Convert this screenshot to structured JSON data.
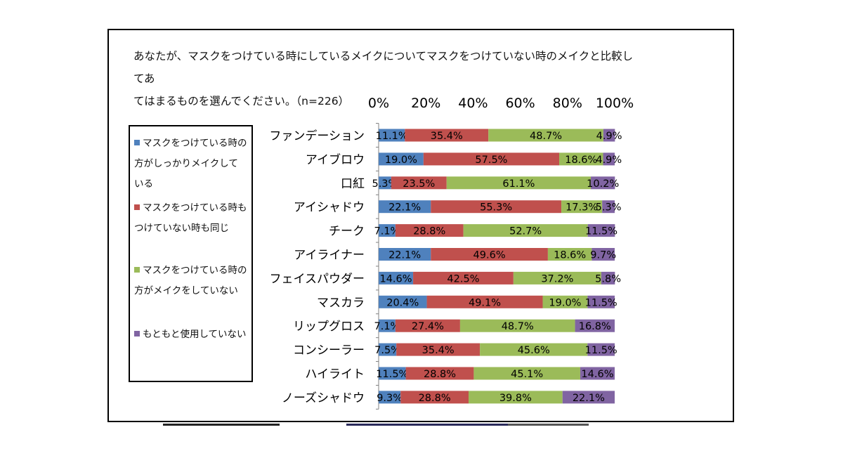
{
  "question": {
    "line1": "あなたが、マスクをつけている時にしているメイクについてマスクをつけていない時のメイクと比較してあ",
    "line2": "てはまるものを選んでください。（n=226）"
  },
  "legend": {
    "items": [
      {
        "line1": "マスクをつけている時の",
        "line2": "方がしっかりメイクして",
        "line3": "いる",
        "color": "#4f81bd"
      },
      {
        "line1": "マスクをつけている時も",
        "line2": "つけていない時も同じ",
        "line3": "",
        "color": "#c0504d"
      },
      {
        "line1": "マスクをつけている時の",
        "line2": "方がメイクをしていない",
        "line3": "",
        "color": "#9bbb59"
      },
      {
        "line1": "もともと使用していない",
        "line2": "",
        "line3": "",
        "color": "#8064a2"
      }
    ]
  },
  "chart_data": {
    "type": "bar",
    "orientation": "horizontal",
    "stacked": "percent",
    "title": "あなたが、マスクをつけている時にしているメイクについてマスクをつけていない時のメイクと比較してあてはまるものを選んでください。（n=226）",
    "xlim": [
      0,
      100
    ],
    "x_ticks": [
      "0%",
      "20%",
      "40%",
      "60%",
      "80%",
      "100%"
    ],
    "categories": [
      "ファンデーション",
      "アイブロウ",
      "口紅",
      "アイシャドウ",
      "チーク",
      "アイライナー",
      "フェイスパウダー",
      "マスカラ",
      "リップグロス",
      "コンシーラー",
      "ハイライト",
      "ノーズシャドウ"
    ],
    "series": [
      {
        "name": "マスクをつけている時の方がしっかりメイクしている",
        "color": "#4f81bd",
        "values": [
          11.1,
          19.0,
          5.3,
          22.1,
          7.1,
          22.1,
          14.6,
          20.4,
          7.1,
          7.5,
          11.5,
          9.3
        ],
        "labels": [
          "11.1%",
          "19.0%",
          "5.3%",
          "22.1%",
          "7.1%",
          "22.1%",
          "14.6%",
          "20.4%",
          "7.1%",
          "7.5%",
          "11.5%",
          "9.3%"
        ]
      },
      {
        "name": "マスクをつけている時もつけていない時も同じ",
        "color": "#c0504d",
        "values": [
          35.4,
          57.5,
          23.5,
          55.3,
          28.8,
          49.6,
          42.5,
          49.1,
          27.4,
          35.4,
          28.8,
          28.8
        ],
        "labels": [
          "35.4%",
          "57.5%",
          "23.5%",
          "55.3%",
          "28.8%",
          "49.6%",
          "42.5%",
          "49.1%",
          "27.4%",
          "35.4%",
          "28.8%",
          "28.8%"
        ]
      },
      {
        "name": "マスクをつけている時の方がメイクをしていない",
        "color": "#9bbb59",
        "values": [
          48.7,
          18.6,
          61.1,
          17.3,
          52.7,
          18.6,
          37.2,
          19.0,
          48.7,
          45.6,
          45.1,
          39.8
        ],
        "labels": [
          "48.7%",
          "18.6%",
          "61.1%",
          "17.3%",
          "52.7%",
          "18.6%",
          "37.2%",
          "19.0%",
          "48.7%",
          "45.6%",
          "45.1%",
          "39.8%"
        ]
      },
      {
        "name": "もともと使用していない",
        "color": "#8064a2",
        "values": [
          4.9,
          4.9,
          10.2,
          5.3,
          11.5,
          9.7,
          5.8,
          11.5,
          16.8,
          11.5,
          14.6,
          22.1
        ],
        "labels": [
          "4.9%",
          "4.9%",
          "10.2%",
          "5.3%",
          "11.5%",
          "9.7%",
          "5.8%",
          "11.5%",
          "16.8%",
          "11.5%",
          "14.6%",
          "22.1%"
        ]
      }
    ]
  }
}
